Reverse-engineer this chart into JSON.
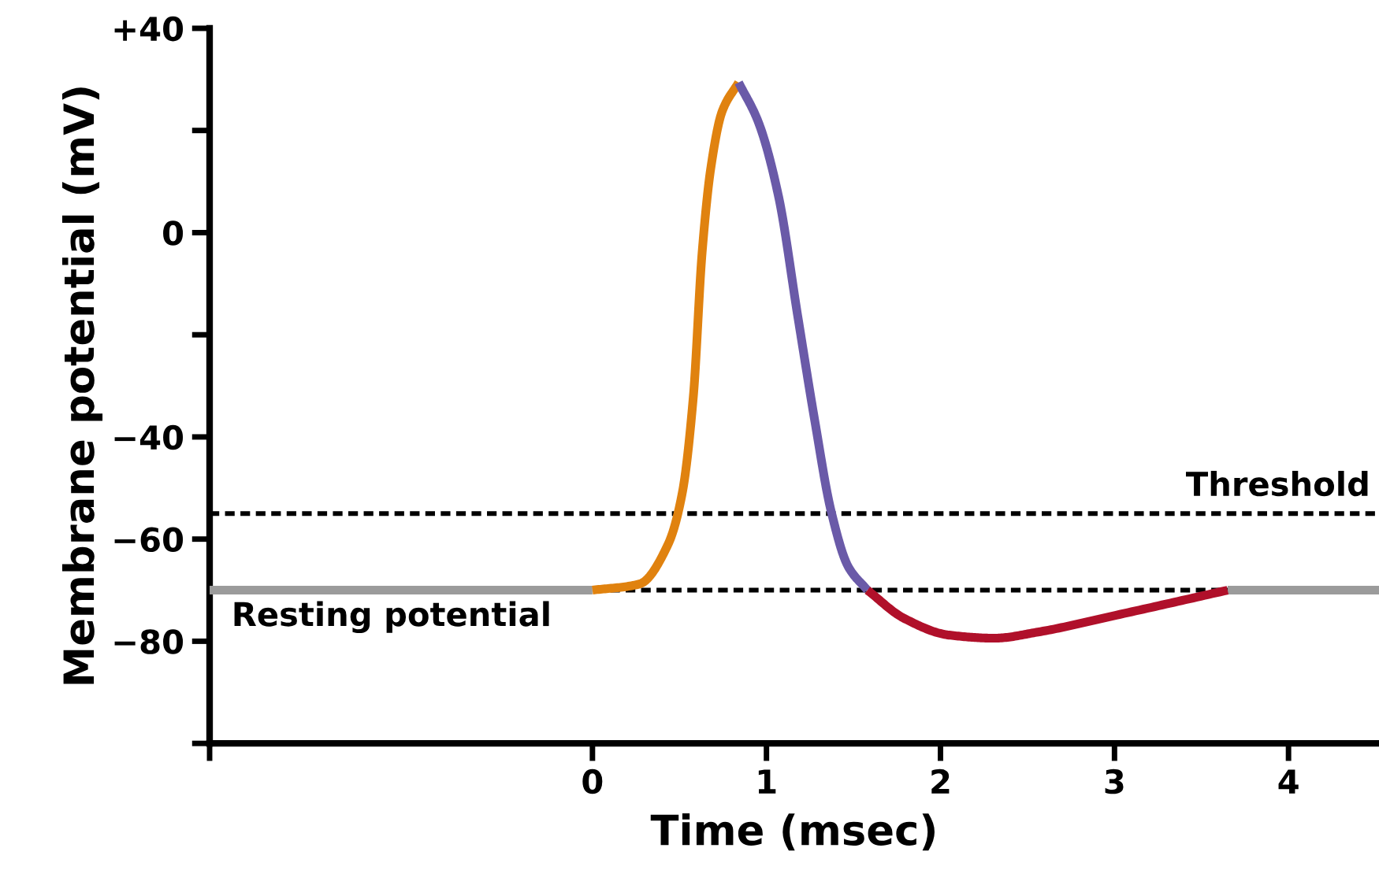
{
  "chart_data": {
    "type": "line",
    "xlabel": "Time (msec)",
    "ylabel": "Membrane potential (mV)",
    "xlim": [
      -2.2,
      4.52
    ],
    "ylim": [
      -100,
      40
    ],
    "xticks": [
      {
        "value": -2.2,
        "label": null
      },
      0,
      1,
      2,
      3,
      4
    ],
    "yticks": [
      {
        "value": 40,
        "label": "+40"
      },
      {
        "value": 20,
        "label": null
      },
      0,
      {
        "value": -20,
        "label": null
      },
      {
        "value": -40,
        "label": "−40"
      },
      {
        "value": -60,
        "label": "−60"
      },
      {
        "value": -80,
        "label": "−80"
      },
      {
        "value": -100,
        "label": null
      }
    ],
    "grid": false,
    "legend": false,
    "marker": "none",
    "line_style": "solid",
    "ref_lines": [
      {
        "axis": "y",
        "value": -55,
        "label": "Threshold",
        "color": "#000000",
        "line_style": "dashed"
      },
      {
        "axis": "y",
        "value": -70,
        "label": "Resting potential",
        "color": "#000000",
        "line_style": "dashed"
      }
    ],
    "series": [
      {
        "color": "#9b9b9b",
        "x": [
          -2.2,
          0,
          1.8,
          3.65,
          4.52
        ],
        "values": [
          -70,
          -70,
          null,
          -70,
          -70
        ]
      },
      {
        "color": "#e0820f",
        "x": [
          0,
          0.27,
          0.435,
          0.516,
          0.58,
          0.63,
          0.68,
          0.745,
          0.84
        ],
        "values": [
          -70,
          -68.8,
          -61,
          -51,
          -32,
          -4,
          12.6,
          23.7,
          29.4
        ]
      },
      {
        "color": "#6a5aa8",
        "x": [
          0.84,
          0.955,
          1.07,
          1.18,
          1.28,
          1.37,
          1.47,
          1.58
        ],
        "values": [
          29.4,
          21.5,
          7,
          -16.4,
          -37.3,
          -54.3,
          -65.4,
          -70
        ]
      },
      {
        "color": "#b0102a",
        "x": [
          1.58,
          1.79,
          2.05,
          2.31,
          2.56,
          3.01,
          3.65
        ],
        "values": [
          -70,
          -75.5,
          -78.8,
          -79.4,
          -78.2,
          -74.9,
          -70
        ]
      }
    ]
  }
}
